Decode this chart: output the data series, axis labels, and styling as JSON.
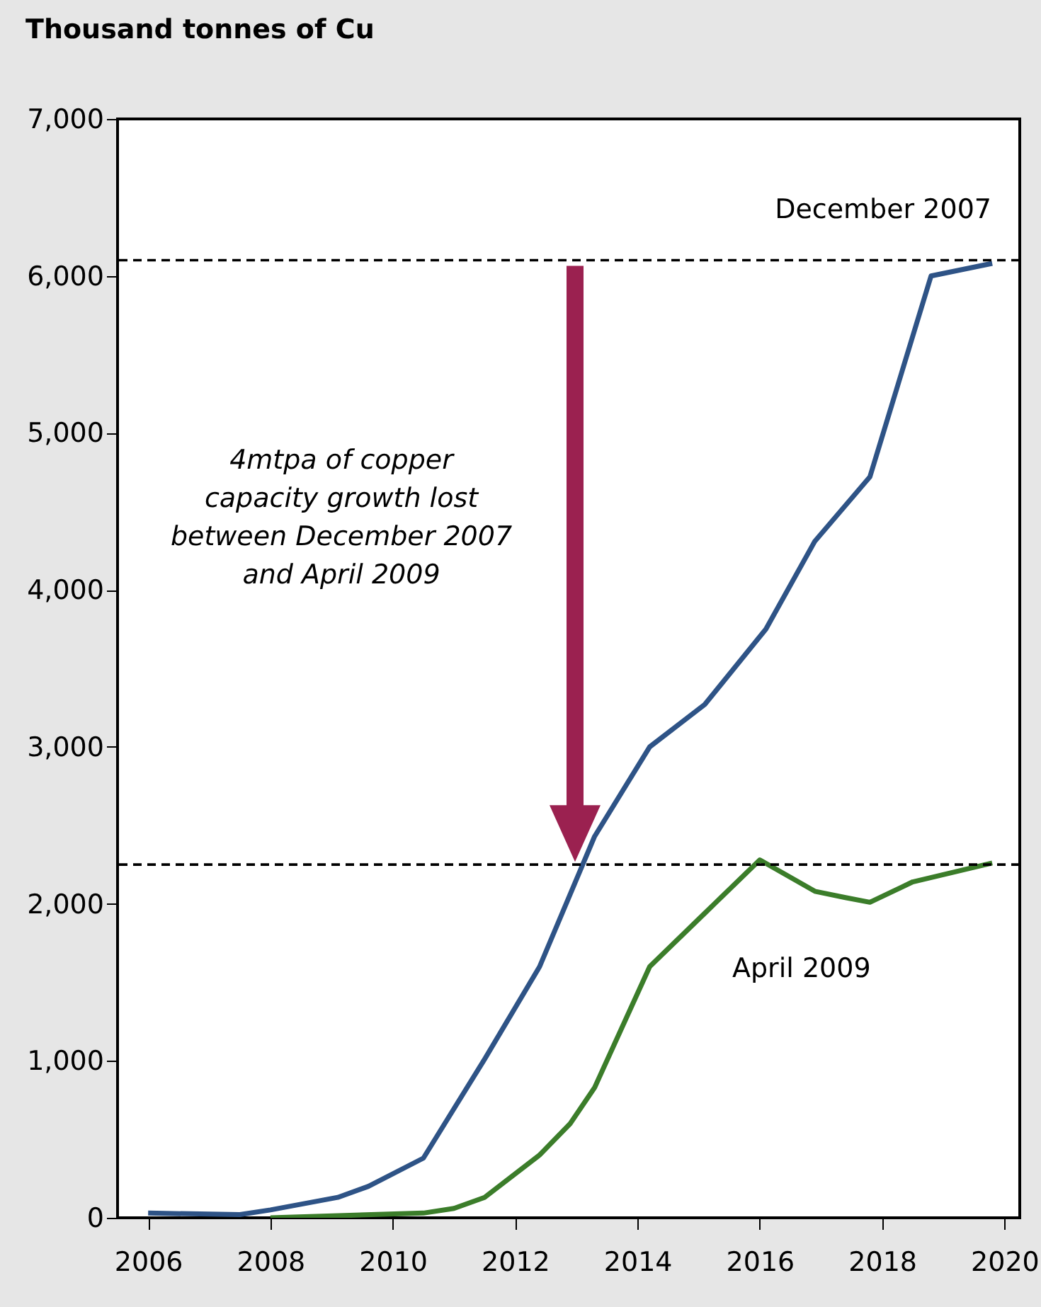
{
  "chart_data": {
    "type": "line",
    "ylabel": "Thousand tonnes of Cu",
    "annotations": [
      "4mtpa of copper capacity growth lost between December 2007 and April 2009",
      "April 2009"
    ],
    "xlim": [
      2005.5,
      2020.25
    ],
    "xticks": [
      2006,
      2008,
      2010,
      2012,
      2014,
      2016,
      2018,
      2020
    ],
    "ylim": [
      0,
      7000
    ],
    "yticks": [
      {
        "value": 0,
        "label": "0"
      },
      {
        "value": 1000,
        "label": "1,000"
      },
      {
        "value": 2000,
        "label": "2,000"
      },
      {
        "value": 3000,
        "label": "3,000"
      },
      {
        "value": 4000,
        "label": "4,000"
      },
      {
        "value": 5000,
        "label": "5,000"
      },
      {
        "value": 6000,
        "label": "6,000"
      },
      {
        "value": 7000,
        "label": "7,000"
      }
    ],
    "grid": false,
    "ref_lines": [
      {
        "axis": "y",
        "value": 6100,
        "label": "December 2007",
        "line_style": "dashed",
        "color": "#000000"
      },
      {
        "axis": "y",
        "value": 2250,
        "line_style": "dashed",
        "color": "#000000"
      }
    ],
    "series": [
      {
        "color": "#2e5386",
        "x": [
          2006,
          2007.5,
          2008,
          2009.1,
          2009.6,
          2010.5,
          2011.5,
          2012.4,
          2013.3,
          2014.2,
          2015.1,
          2016.1,
          2016.9,
          2017.8,
          2018.8,
          2019.8
        ],
        "values": [
          30,
          20,
          50,
          130,
          200,
          380,
          1010,
          1600,
          2430,
          3000,
          3270,
          3750,
          4310,
          4720,
          6000,
          6080
        ]
      },
      {
        "color": "#3b7d2a",
        "x": [
          2008,
          2010.5,
          2011,
          2011.5,
          2012.4,
          2012.9,
          2013.3,
          2014.2,
          2015.1,
          2016.0,
          2016.9,
          2017.4,
          2017.8,
          2018.5,
          2019.8
        ],
        "values": [
          0,
          30,
          60,
          130,
          400,
          600,
          830,
          1600,
          1940,
          2280,
          2080,
          2040,
          2010,
          2140,
          2260
        ]
      }
    ]
  }
}
